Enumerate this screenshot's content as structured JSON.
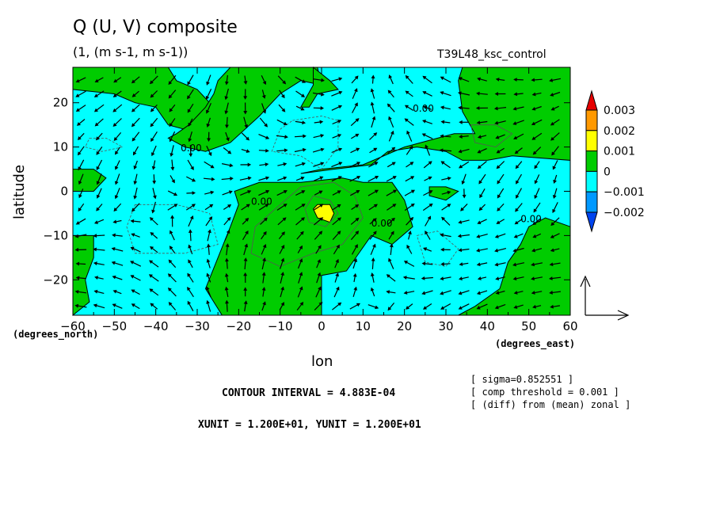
{
  "chart_data": {
    "type": "heatmap",
    "title": "Q (U, V) composite",
    "subtitle": "(1, (m s-1, m s-1))",
    "run_name": "T39L48_ksc_control",
    "xlabel": "lon",
    "ylabel": "latitude",
    "x_units": "(degrees_east)",
    "y_units": "(degrees_north)",
    "xlim": [
      -60,
      60
    ],
    "ylim": [
      -28,
      28
    ],
    "x_ticks": [
      -60,
      -50,
      -40,
      -30,
      -20,
      -10,
      0,
      10,
      20,
      30,
      40,
      50,
      60
    ],
    "y_ticks": [
      -20,
      -10,
      0,
      10,
      20
    ],
    "contour_label": "0.00",
    "colorbar": {
      "labels": [
        "0.003",
        "0.002",
        "0.001",
        "0",
        "−0.001",
        "−0.002"
      ],
      "colors": [
        "#e60000",
        "#ff9900",
        "#ffff00",
        "#00cc00",
        "#00ffff",
        "#0099ff",
        "#0044ee"
      ]
    },
    "regions": [
      {
        "fill": "green",
        "polygon": [
          [
            -60,
            -10
          ],
          [
            -55,
            -10
          ],
          [
            -55,
            -15
          ],
          [
            -57,
            -20
          ],
          [
            -56,
            -25
          ],
          [
            -60,
            -28
          ]
        ]
      },
      {
        "fill": "green",
        "polygon": [
          [
            -60,
            5
          ],
          [
            -55,
            5
          ],
          [
            -52,
            3
          ],
          [
            -55,
            0
          ],
          [
            -60,
            0
          ]
        ]
      },
      {
        "fill": "green",
        "polygon": [
          [
            -60,
            28
          ],
          [
            -37,
            28
          ],
          [
            -35,
            25
          ],
          [
            -30,
            23
          ],
          [
            -27,
            20
          ],
          [
            -29,
            17
          ],
          [
            -33,
            14
          ],
          [
            -37,
            15
          ],
          [
            -40,
            19
          ],
          [
            -45,
            20
          ],
          [
            -50,
            22
          ],
          [
            -60,
            23
          ]
        ]
      },
      {
        "fill": "green",
        "polygon": [
          [
            -22,
            28
          ],
          [
            -25,
            25
          ],
          [
            -26,
            22
          ],
          [
            -28,
            19
          ],
          [
            -32,
            15
          ],
          [
            -35,
            13
          ],
          [
            -37,
            12
          ],
          [
            -33,
            10
          ],
          [
            -28,
            9
          ],
          [
            -22,
            11
          ],
          [
            -15,
            17
          ],
          [
            -10,
            22
          ],
          [
            -5,
            25
          ],
          [
            0,
            24
          ],
          [
            -1,
            28
          ]
        ]
      },
      {
        "fill": "green",
        "polygon": [
          [
            -2,
            28
          ],
          [
            2,
            25
          ],
          [
            4,
            23
          ],
          [
            -1,
            22
          ],
          [
            -3,
            19
          ],
          [
            -5,
            19
          ],
          [
            -2,
            24
          ]
        ]
      },
      {
        "fill": "green",
        "polygon": [
          [
            -21,
            0
          ],
          [
            -15,
            2
          ],
          [
            -5,
            2
          ],
          [
            5,
            3
          ],
          [
            10,
            2
          ],
          [
            17,
            2
          ],
          [
            20,
            -2
          ],
          [
            22,
            -8
          ],
          [
            17,
            -12
          ],
          [
            12,
            -10
          ],
          [
            6,
            -18
          ],
          [
            0,
            -19
          ],
          [
            0,
            -28
          ],
          [
            -24,
            -28
          ],
          [
            -28,
            -22
          ],
          [
            -22,
            -8
          ],
          [
            -20,
            -3
          ]
        ]
      },
      {
        "fill": "green",
        "polygon": [
          [
            -5,
            4
          ],
          [
            3,
            5
          ],
          [
            12,
            6
          ],
          [
            16,
            9
          ],
          [
            23,
            10
          ],
          [
            30,
            9
          ],
          [
            34,
            7
          ],
          [
            40,
            7
          ],
          [
            46,
            8
          ],
          [
            60,
            7
          ],
          [
            60,
            28
          ],
          [
            34,
            28
          ],
          [
            33,
            25
          ],
          [
            34,
            18
          ],
          [
            37,
            13
          ],
          [
            32,
            13
          ],
          [
            20,
            10
          ],
          [
            10,
            6
          ],
          [
            0,
            5
          ]
        ]
      },
      {
        "fill": "green",
        "polygon": [
          [
            26,
            1
          ],
          [
            30,
            1
          ],
          [
            33,
            0
          ],
          [
            30,
            -2
          ],
          [
            26,
            -1
          ]
        ]
      },
      {
        "fill": "green",
        "polygon": [
          [
            60,
            -8
          ],
          [
            54,
            -6
          ],
          [
            50,
            -8
          ],
          [
            48,
            -12
          ],
          [
            45,
            -16
          ],
          [
            43,
            -22
          ],
          [
            37,
            -26
          ],
          [
            33,
            -28
          ],
          [
            60,
            -28
          ]
        ]
      },
      {
        "fill": "yellow",
        "polygon": [
          [
            -1,
            -3
          ],
          [
            2,
            -3
          ],
          [
            3,
            -5
          ],
          [
            2,
            -7
          ],
          [
            -1,
            -6
          ],
          [
            -2,
            -4
          ]
        ]
      }
    ],
    "dashed_contours": [
      [
        [
          -56,
          12
        ],
        [
          -52,
          12
        ],
        [
          -48,
          10
        ],
        [
          -53,
          9
        ],
        [
          -57,
          10
        ]
      ],
      [
        [
          -45,
          -3
        ],
        [
          -35,
          -3
        ],
        [
          -27,
          -5
        ],
        [
          -25,
          -12
        ],
        [
          -33,
          -14
        ],
        [
          -45,
          -14
        ],
        [
          -47,
          -8
        ]
      ],
      [
        [
          -7,
          16
        ],
        [
          0,
          17
        ],
        [
          4,
          16
        ],
        [
          4,
          10
        ],
        [
          0,
          5
        ],
        [
          -5,
          8
        ],
        [
          -12,
          9
        ],
        [
          -10,
          14
        ]
      ],
      [
        [
          23,
          -10
        ],
        [
          28,
          -9
        ],
        [
          33,
          -13
        ],
        [
          30,
          -17
        ],
        [
          25,
          -16
        ]
      ]
    ],
    "solid_contours": [
      [
        [
          -5,
          1
        ],
        [
          3,
          2
        ],
        [
          8,
          -1
        ],
        [
          10,
          -6
        ],
        [
          5,
          -12
        ],
        [
          -2,
          -14
        ],
        [
          -10,
          -17
        ],
        [
          -17,
          -14
        ],
        [
          -16,
          -8
        ],
        [
          -10,
          -3
        ]
      ],
      [
        [
          -2,
          -1
        ],
        [
          2,
          -2
        ],
        [
          4,
          -5
        ],
        [
          1,
          -8
        ],
        [
          -3,
          -7
        ],
        [
          -4,
          -4
        ]
      ],
      [
        [
          36,
          15
        ],
        [
          42,
          15
        ],
        [
          46,
          13
        ],
        [
          42,
          10
        ],
        [
          37,
          11
        ]
      ]
    ],
    "contour_labels_at": [
      [
        -34,
        9
      ],
      [
        -17,
        -3
      ],
      [
        12,
        -8
      ],
      [
        48,
        -7
      ],
      [
        22,
        18
      ]
    ]
  },
  "vector_key": {
    "label": "reference vector"
  },
  "footnotes": {
    "contour_interval": "CONTOUR INTERVAL = 4.883E-04",
    "units": "XUNIT = 1.200E+01, YUNIT = 1.200E+01",
    "sigma": "[ sigma=0.852551 ]",
    "threshold": "[ comp threshold = 0.001 ]",
    "diff": "[ (diff) from (mean) zonal ]"
  }
}
